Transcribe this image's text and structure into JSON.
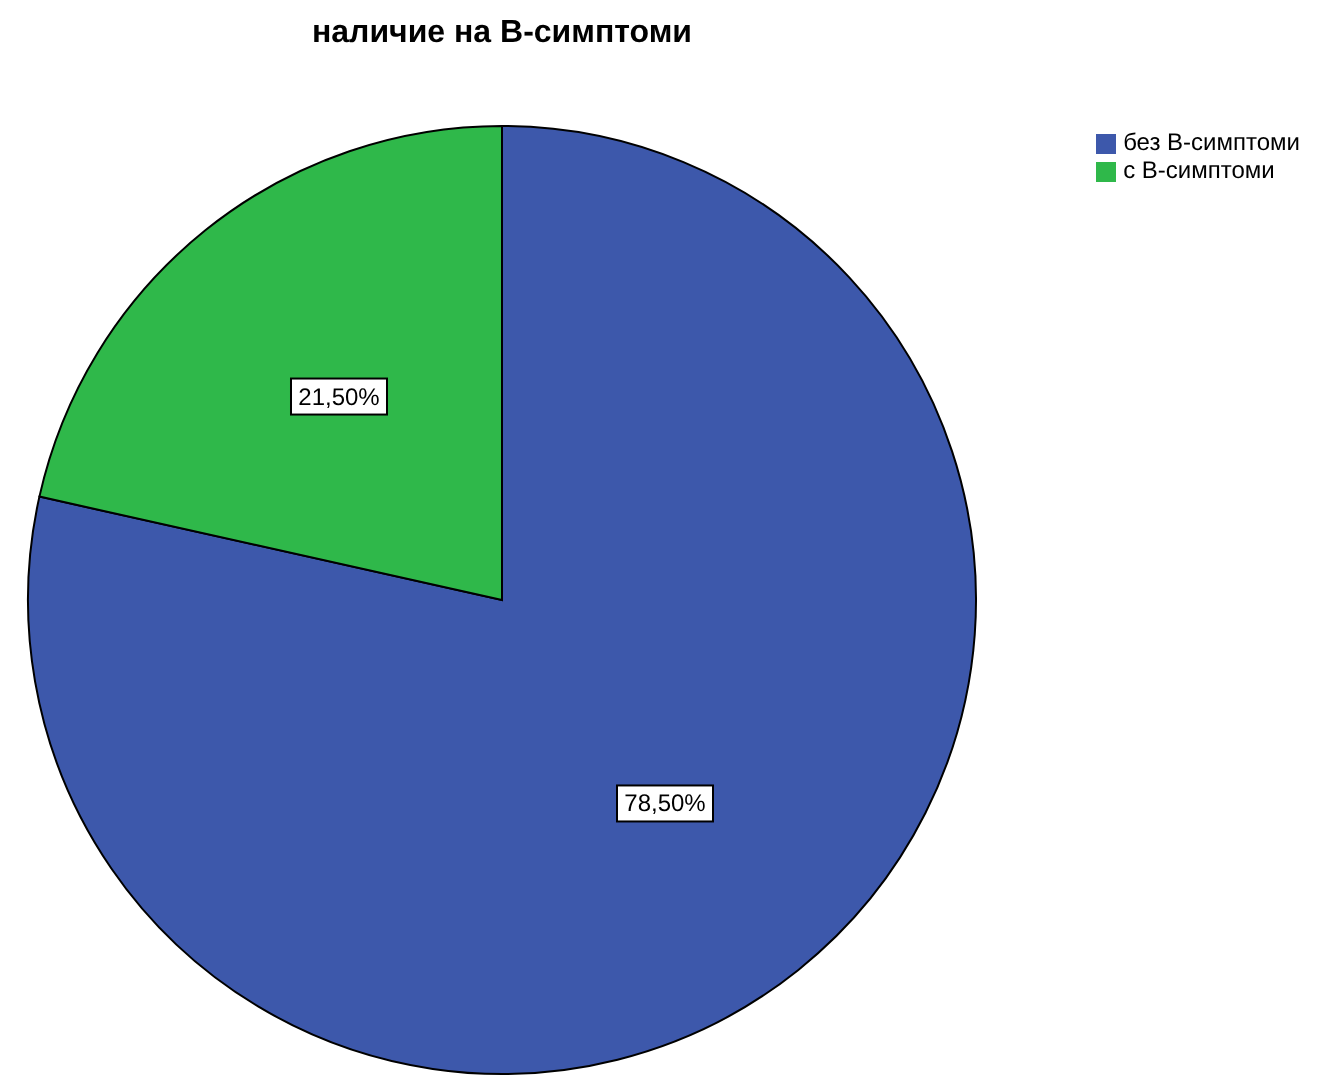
{
  "chart_data": {
    "type": "pie",
    "title": "наличие на В-симптоми",
    "categories": [
      "без В-симптоми",
      "с В-симптоми"
    ],
    "values": [
      78.5,
      21.5
    ],
    "colors": [
      "#3d58ab",
      "#2fb84a"
    ],
    "value_labels": [
      "78,50%",
      "21,50%"
    ],
    "legend": "top right"
  }
}
